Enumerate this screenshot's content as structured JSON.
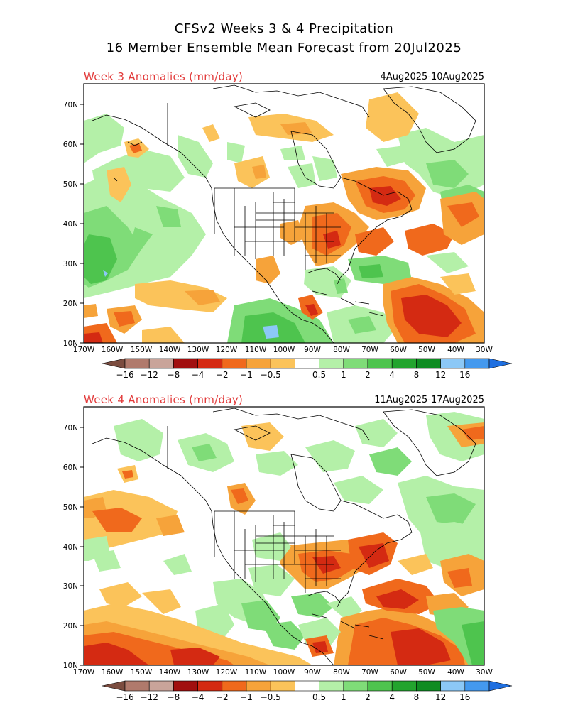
{
  "title_line1": "CFSv2 Weeks 3 & 4 Precipitation",
  "title_line2": "16 Member Ensemble Mean Forecast from 20Jul2025",
  "panels": [
    {
      "label": "Week 3 Anomalies (mm/day)",
      "dates": "4Aug2025-10Aug2025"
    },
    {
      "label": "Week 4 Anomalies (mm/day)",
      "dates": "11Aug2025-17Aug2025"
    }
  ],
  "lat_labels": [
    "70N",
    "60N",
    "50N",
    "40N",
    "30N",
    "20N",
    "10N"
  ],
  "lon_labels": [
    "170W",
    "160W",
    "150W",
    "140W",
    "130W",
    "120W",
    "110W",
    "100W",
    "90W",
    "80W",
    "70W",
    "60W",
    "50W",
    "40W",
    "30W"
  ],
  "colorbar": {
    "labels": [
      "-16",
      "-12",
      "-8",
      "-4",
      "-2",
      "-1",
      "-0.5",
      "0.5",
      "1",
      "2",
      "4",
      "8",
      "12",
      "16"
    ],
    "colors": [
      "#7b4c3f",
      "#b07a6c",
      "#c9a49a",
      "#a10f0f",
      "#d42a12",
      "#f0691c",
      "#f6a33a",
      "#fbc35a",
      "#ffffff",
      "#b4f0a8",
      "#7fdc78",
      "#4ec44e",
      "#23a42e",
      "#0f8c22",
      "#8cc8f6",
      "#4499ee",
      "#1f6fe0"
    ]
  }
}
